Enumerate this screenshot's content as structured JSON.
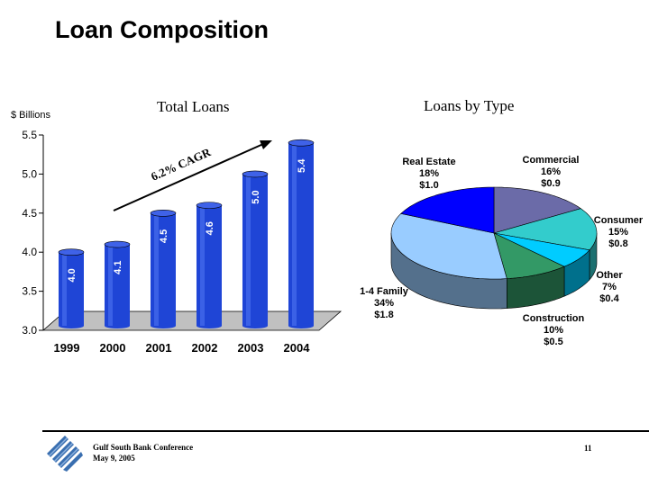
{
  "slide": {
    "title": "Loan Composition",
    "footer_lines": [
      "Gulf South Bank Conference",
      "May 9, 2005"
    ],
    "page_number": "11"
  },
  "chart_data": [
    {
      "type": "bar",
      "title": "Total Loans",
      "ylabel": "$ Billions",
      "categories": [
        "1999",
        "2000",
        "2001",
        "2002",
        "2003",
        "2004"
      ],
      "values": [
        4.0,
        4.1,
        4.5,
        4.6,
        5.0,
        5.4
      ],
      "data_labels": [
        "4.0",
        "4.1",
        "4.5",
        "4.6",
        "5.0",
        "5.4"
      ],
      "ylim": [
        3.0,
        5.5
      ],
      "yticks": [
        "3.0",
        "3.5",
        "4.0",
        "4.5",
        "5.0",
        "5.5"
      ],
      "annotation": "6.2% CAGR",
      "bar_color": "#1f45d6",
      "grid": false
    },
    {
      "type": "pie",
      "title": "Loans by Type",
      "slices": [
        {
          "name": "Commercial",
          "percent": 16,
          "value_label": "$0.9",
          "percent_label": "16%",
          "color": "#6b6ba8"
        },
        {
          "name": "Consumer",
          "percent": 15,
          "value_label": "$0.8",
          "percent_label": "15%",
          "color": "#33cccc"
        },
        {
          "name": "Other",
          "percent": 7,
          "value_label": "$0.4",
          "percent_label": "7%",
          "color": "#00ccff"
        },
        {
          "name": "Construction",
          "percent": 10,
          "value_label": "$0.5",
          "percent_label": "10%",
          "color": "#339966"
        },
        {
          "name": "1-4 Family",
          "percent": 34,
          "value_label": "$1.8",
          "percent_label": "34%",
          "color": "#99ccff"
        },
        {
          "name": "Real Estate",
          "percent": 18,
          "value_label": "$1.0",
          "percent_label": "18%",
          "color": "#0000ff"
        }
      ]
    }
  ]
}
